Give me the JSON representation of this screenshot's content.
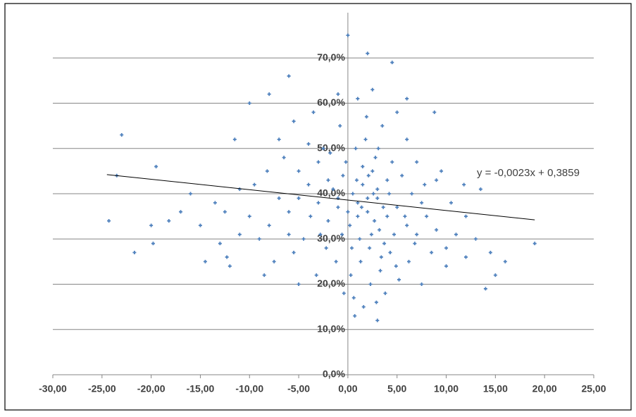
{
  "chart_data": {
    "type": "scatter",
    "color": "#4f81bd",
    "grid": true,
    "xlim": [
      -30,
      25
    ],
    "xticks": [
      {
        "value": -30,
        "label": "-30,00"
      },
      {
        "value": -25,
        "label": "-25,00"
      },
      {
        "value": -20,
        "label": "-20,00"
      },
      {
        "value": -15,
        "label": "-15,00"
      },
      {
        "value": -10,
        "label": "-10,00"
      },
      {
        "value": -5,
        "label": "-5,00"
      },
      {
        "value": 0,
        "label": "0,00"
      },
      {
        "value": 5,
        "label": "5,00"
      },
      {
        "value": 10,
        "label": "10,00"
      },
      {
        "value": 15,
        "label": "15,00"
      },
      {
        "value": 20,
        "label": "20,00"
      },
      {
        "value": 25,
        "label": "25,00"
      }
    ],
    "ylim": [
      0,
      80
    ],
    "yticks": [
      {
        "value": 0,
        "label": "0,0%"
      },
      {
        "value": 10,
        "label": "10,0%"
      },
      {
        "value": 20,
        "label": "20,0%"
      },
      {
        "value": 30,
        "label": "30,0%"
      },
      {
        "value": 40,
        "label": "40,0%"
      },
      {
        "value": 50,
        "label": "50,0%"
      },
      {
        "value": 60,
        "label": "60,0%"
      },
      {
        "value": 70,
        "label": "70,0%"
      }
    ],
    "trendline": {
      "label": "y = -0,0023x + 0,3859",
      "slope": -0.23,
      "intercept": 38.59,
      "x_range": [
        -24.5,
        19
      ]
    },
    "x": [
      -24.3,
      -23,
      -23.5,
      -21.7,
      -20,
      -19.5,
      -19.8,
      -18.2,
      -14.5,
      -13.5,
      -12.3,
      -12,
      -11.5,
      -11,
      -10,
      -8,
      -6,
      -5,
      -5.5,
      0,
      2,
      3,
      4.5,
      6,
      8.8,
      11.8,
      13.5,
      14.5,
      14,
      16,
      19,
      13,
      10,
      12,
      9,
      7.5,
      15,
      0.5,
      1,
      1.5,
      2,
      2.5,
      3,
      -0.5,
      -1,
      -1.5,
      0.2,
      1.2,
      2.2,
      3.2,
      -2,
      -3,
      -4,
      4,
      5,
      6,
      7,
      0.8,
      1.8,
      2.8,
      -0.8,
      -2.5,
      3.5,
      4.5,
      5.5,
      6.5,
      7.5,
      8,
      9,
      -6,
      -7,
      -8,
      -9,
      -5,
      -6.5,
      -3.5,
      -1,
      1,
      2.5,
      0.3,
      1.3,
      2.3,
      3.3,
      4.3,
      -1.2,
      -2.2,
      -3.2,
      0.6,
      1.6,
      -0.4,
      3.8,
      5.2,
      6.2,
      -4.5,
      -5.5,
      -7.5,
      -8.5,
      -10,
      -9.5,
      -11,
      -12.5,
      -13,
      -15,
      -16,
      -17,
      8.5,
      10,
      11,
      12,
      10.5,
      9.5,
      7,
      6,
      5,
      4,
      3,
      2,
      1,
      0,
      -1,
      -2,
      -3,
      -4,
      -5,
      -6,
      1.5,
      2.7,
      3.7,
      4.7,
      0.4,
      -0.6,
      1.9,
      3.1,
      -1.8,
      2.4,
      3.6,
      4.2,
      5.8,
      6.8,
      -2.8,
      -3.8,
      0.9,
      1.4,
      2.1,
      2.6,
      -0.2,
      3.4,
      4.9,
      -7,
      -8.2,
      7.8,
      0.7,
      2.9
    ],
    "values": [
      34,
      53,
      44,
      27,
      33,
      46,
      29,
      34,
      25,
      38,
      26,
      24,
      52,
      41,
      60,
      62,
      66,
      20,
      56,
      75,
      71,
      12,
      69,
      61,
      58,
      42,
      41,
      27,
      19,
      25,
      29,
      30,
      28,
      35,
      43,
      20,
      22,
      40,
      38,
      42,
      36,
      45,
      39,
      44,
      37,
      41,
      33,
      30,
      28,
      32,
      34,
      38,
      42,
      35,
      37,
      33,
      31,
      50,
      52,
      48,
      55,
      50,
      55,
      47,
      44,
      40,
      38,
      35,
      32,
      36,
      39,
      33,
      30,
      45,
      48,
      58,
      62,
      61,
      63,
      22,
      25,
      20,
      23,
      27,
      25,
      28,
      22,
      17,
      15,
      18,
      18,
      21,
      25,
      30,
      27,
      25,
      22,
      35,
      42,
      31,
      36,
      29,
      33,
      40,
      36,
      27,
      24,
      31,
      26,
      38,
      45,
      47,
      52,
      58,
      43,
      41,
      39,
      35,
      36,
      39,
      43,
      47,
      51,
      39,
      31,
      46,
      34,
      29,
      31,
      28,
      31,
      57,
      50,
      49,
      31,
      37,
      40,
      35,
      29,
      31,
      35,
      43,
      37,
      44,
      40,
      47,
      26,
      24,
      52,
      45,
      42,
      13,
      16
    ]
  }
}
